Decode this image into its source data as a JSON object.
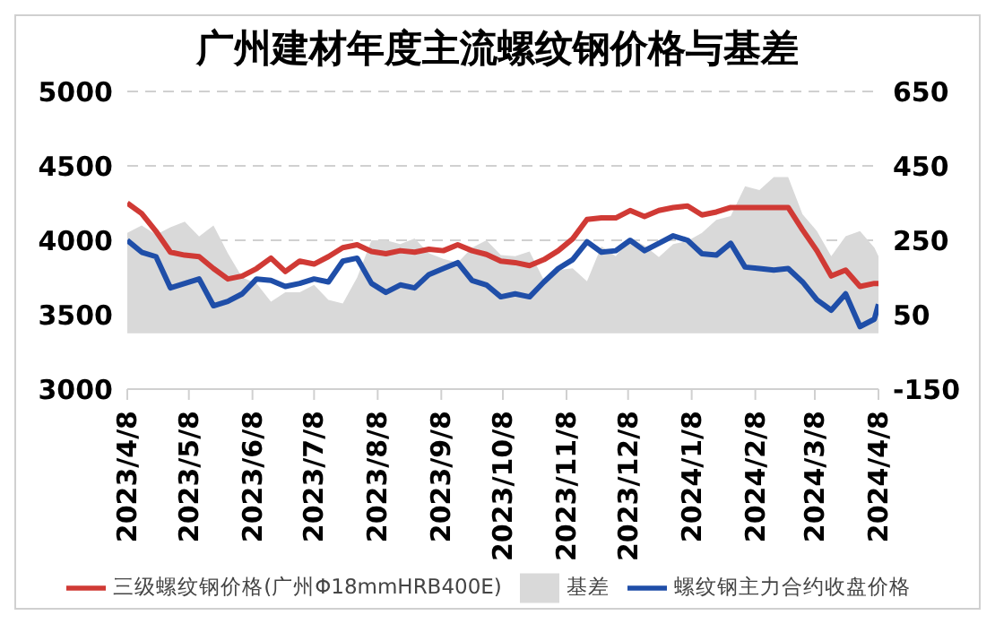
{
  "chart_data": {
    "type": "line",
    "title": "广州建材年度主流螺纹钢价格与基差",
    "x": [
      "2023-04-08",
      "2023-04-15",
      "2023-04-22",
      "2023-04-29",
      "2023-05-06",
      "2023-05-13",
      "2023-05-20",
      "2023-05-27",
      "2023-06-03",
      "2023-06-10",
      "2023-06-17",
      "2023-06-24",
      "2023-07-01",
      "2023-07-08",
      "2023-07-15",
      "2023-07-22",
      "2023-07-29",
      "2023-08-05",
      "2023-08-12",
      "2023-08-19",
      "2023-08-26",
      "2023-09-02",
      "2023-09-09",
      "2023-09-16",
      "2023-09-23",
      "2023-09-30",
      "2023-10-07",
      "2023-10-14",
      "2023-10-21",
      "2023-10-28",
      "2023-11-04",
      "2023-11-11",
      "2023-11-18",
      "2023-11-25",
      "2023-12-02",
      "2023-12-09",
      "2023-12-16",
      "2023-12-23",
      "2023-12-30",
      "2024-01-06",
      "2024-01-13",
      "2024-01-20",
      "2024-01-27",
      "2024-02-03",
      "2024-02-10",
      "2024-02-17",
      "2024-02-24",
      "2024-03-02",
      "2024-03-09",
      "2024-03-16",
      "2024-03-23",
      "2024-03-30",
      "2024-04-06",
      "2024-04-08"
    ],
    "series": [
      {
        "name": "基差",
        "type": "area",
        "axis": "y2",
        "color": "#d9d9d9",
        "values": [
          270,
          290,
          265,
          285,
          300,
          260,
          290,
          215,
          150,
          134,
          85,
          110,
          110,
          130,
          90,
          80,
          150,
          250,
          250,
          240,
          255,
          215,
          200,
          190,
          230,
          250,
          210,
          207,
          220,
          143,
          170,
          175,
          140,
          234,
          207,
          255,
          236,
          205,
          240,
          248,
          270,
          305,
          315,
          395,
          385,
          420,
          420,
          320,
          275,
          207,
          261,
          275,
          230,
          207
        ]
      },
      {
        "name": "螺纹钢主力合约收盘价格",
        "color": "#1f4ea8",
        "values": [
          4000,
          3920,
          3890,
          3680,
          3710,
          3740,
          3560,
          3590,
          3640,
          3740,
          3730,
          3690,
          3710,
          3740,
          3720,
          3860,
          3880,
          3710,
          3650,
          3700,
          3680,
          3770,
          3810,
          3850,
          3730,
          3700,
          3620,
          3640,
          3620,
          3720,
          3810,
          3870,
          3990,
          3920,
          3930,
          4000,
          3930,
          3980,
          4030,
          4000,
          3910,
          3900,
          3980,
          3820,
          3810,
          3800,
          3810,
          3720,
          3600,
          3530,
          3640,
          3420,
          3470,
          3570
        ]
      },
      {
        "name": "三级螺纹钢价格(广州Φ18mmHRB400E)",
        "color": "#d03a35",
        "values": [
          4250,
          4180,
          4060,
          3920,
          3900,
          3890,
          3810,
          3740,
          3760,
          3810,
          3880,
          3790,
          3860,
          3840,
          3890,
          3950,
          3970,
          3925,
          3910,
          3930,
          3920,
          3940,
          3930,
          3970,
          3930,
          3905,
          3860,
          3850,
          3830,
          3870,
          3930,
          4010,
          4140,
          4150,
          4150,
          4200,
          4160,
          4200,
          4220,
          4230,
          4170,
          4190,
          4220,
          4220,
          4220,
          4220,
          4220,
          4070,
          3930,
          3760,
          3800,
          3690,
          3710,
          3710
        ]
      }
    ],
    "xlim": [
      "2023-04-08",
      "2024-04-08"
    ],
    "xticks": [
      {
        "value": "2023-04-08",
        "label": "2023/4/8"
      },
      {
        "value": "2023-05-08",
        "label": "2023/5/8"
      },
      {
        "value": "2023-06-08",
        "label": "2023/6/8"
      },
      {
        "value": "2023-07-08",
        "label": "2023/7/8"
      },
      {
        "value": "2023-08-08",
        "label": "2023/8/8"
      },
      {
        "value": "2023-09-08",
        "label": "2023/9/8"
      },
      {
        "value": "2023-10-08",
        "label": "2023/10/8"
      },
      {
        "value": "2023-11-08",
        "label": "2023/11/8"
      },
      {
        "value": "2023-12-08",
        "label": "2023/12/8"
      },
      {
        "value": "2024-01-08",
        "label": "2024/1/8"
      },
      {
        "value": "2024-02-08",
        "label": "2024/2/8"
      },
      {
        "value": "2024-03-08",
        "label": "2024/3/8"
      },
      {
        "value": "2024-04-08",
        "label": "2024/4/8"
      }
    ],
    "ylim": [
      3000,
      5000
    ],
    "yticks": [
      3000,
      3500,
      4000,
      4500,
      5000
    ],
    "y2lim": [
      -150,
      650
    ],
    "y2ticks": [
      -150,
      50,
      250,
      450,
      650
    ],
    "grid": "y",
    "legend": "bottom",
    "marker": "none",
    "line_style": "solid"
  }
}
